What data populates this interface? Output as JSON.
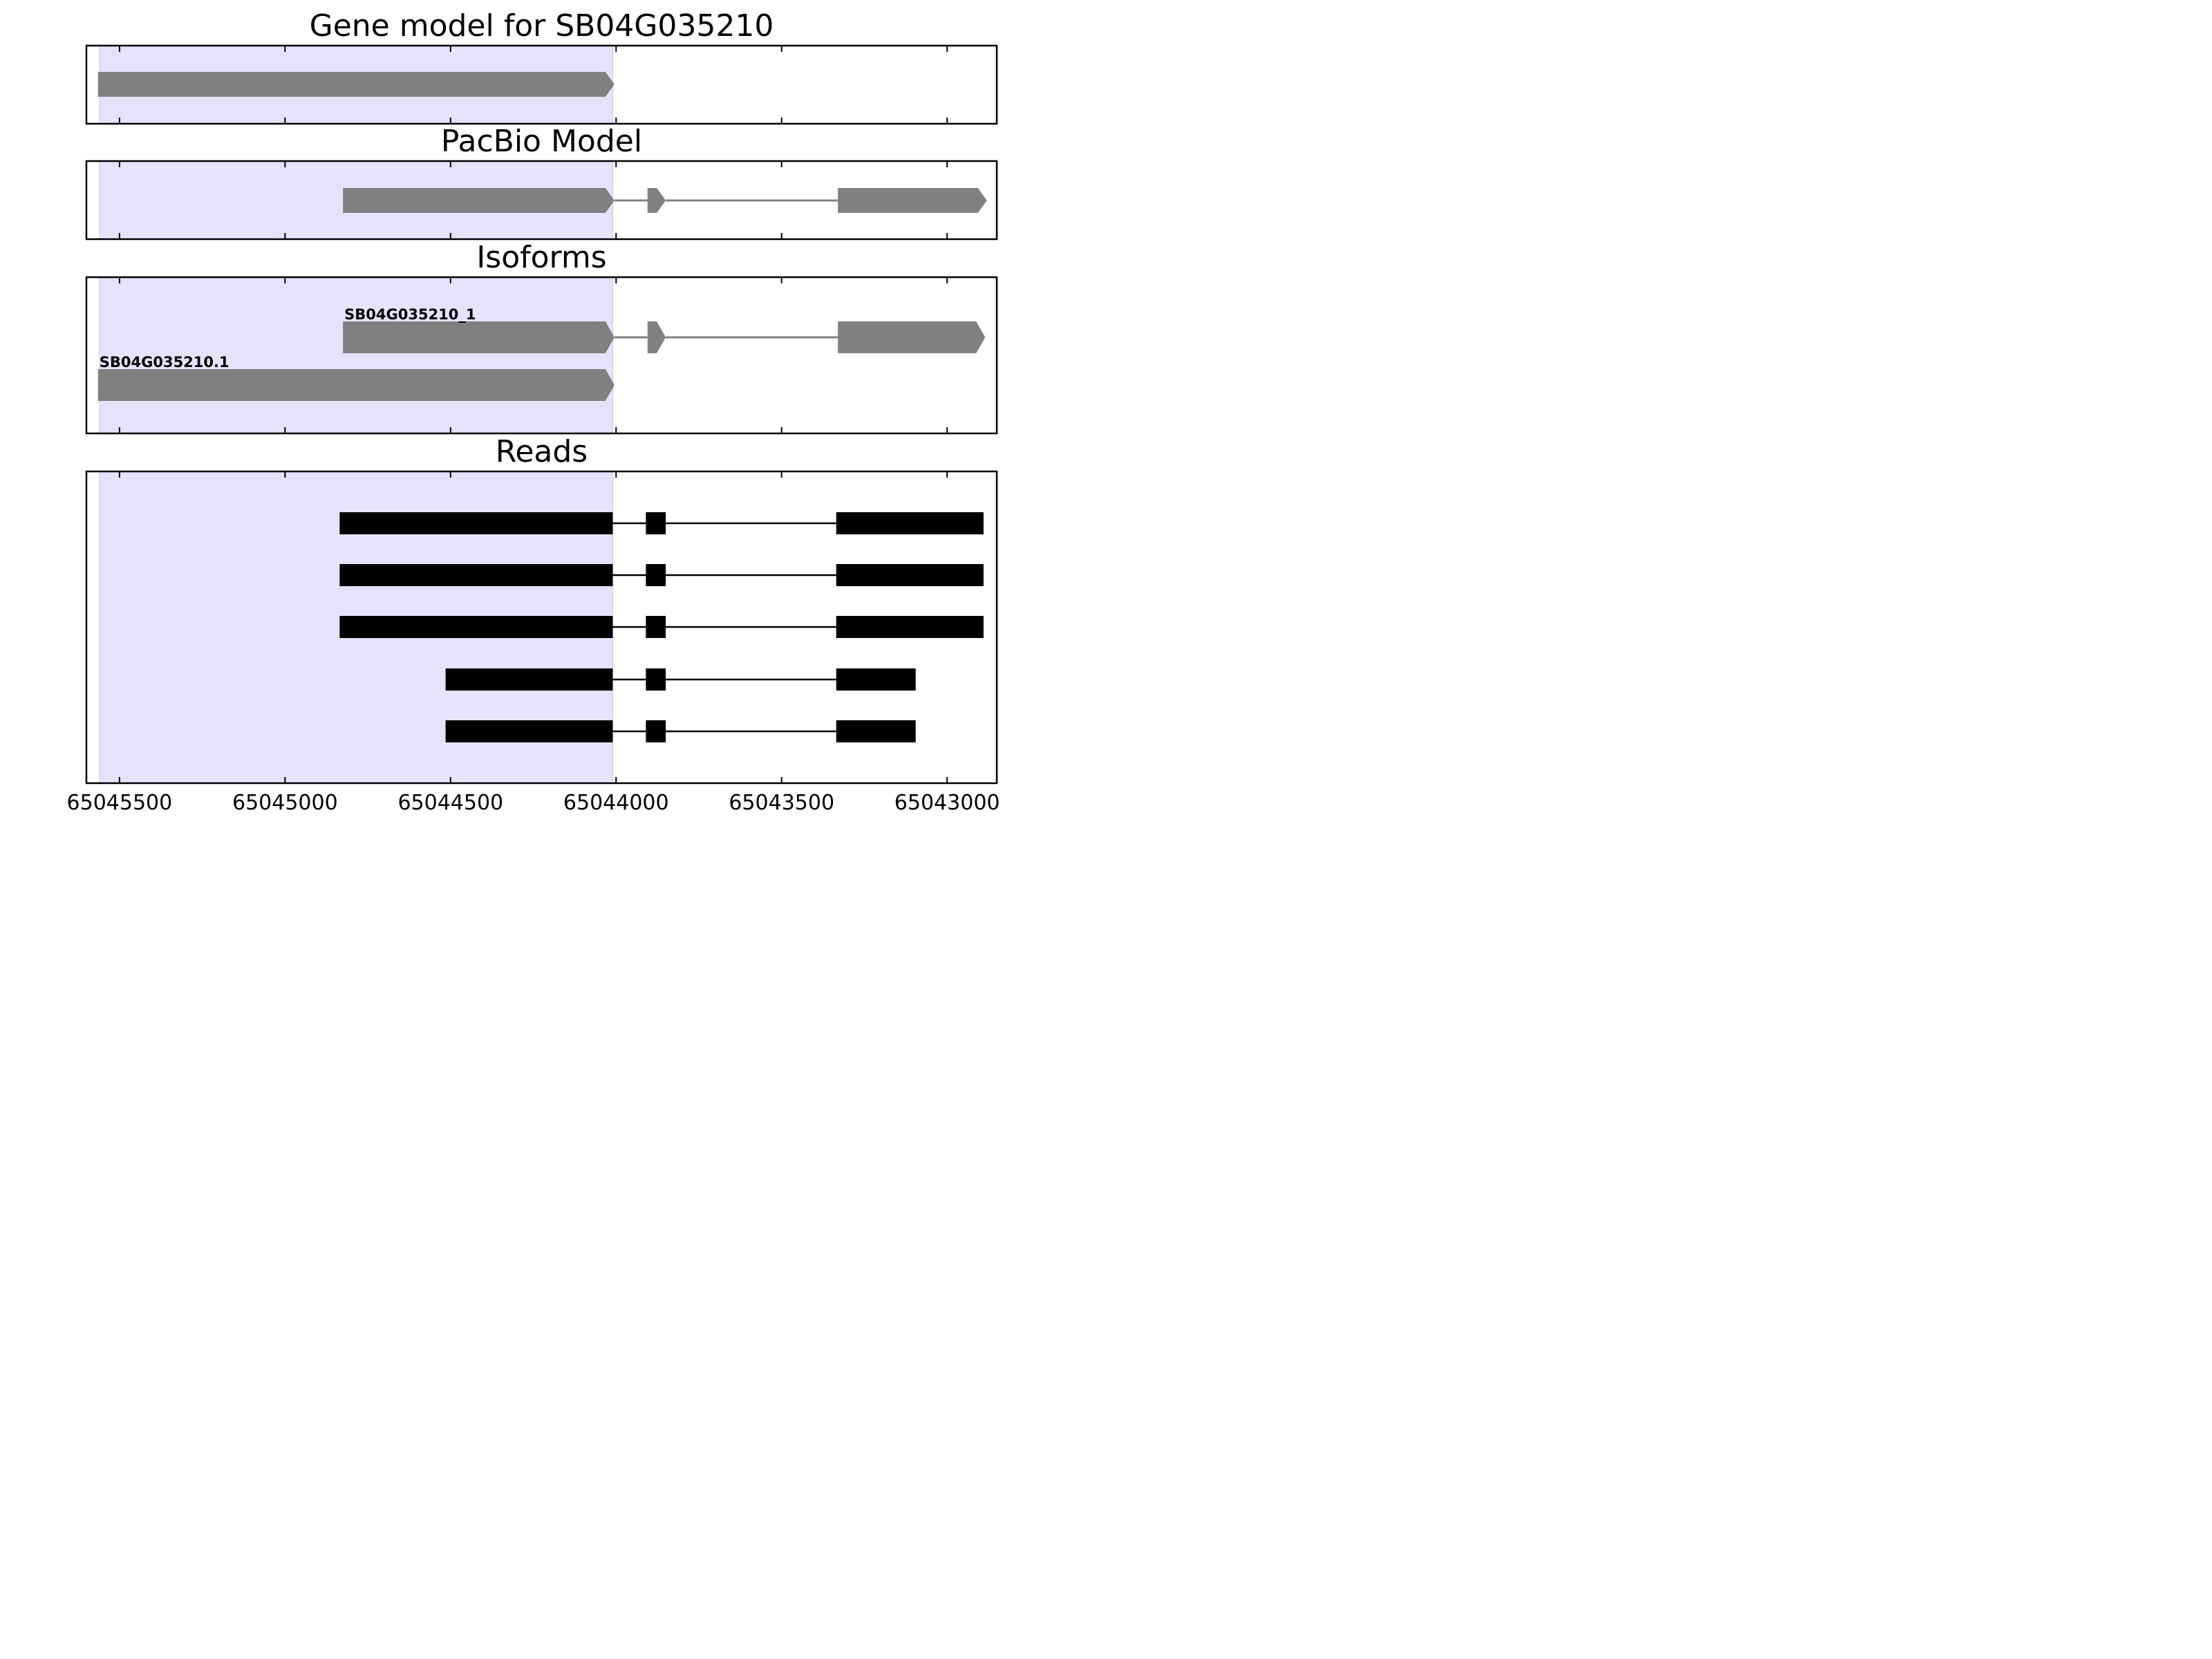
{
  "chart_data": {
    "type": "gene-track",
    "x_axis": {
      "ticks": [
        65045500,
        65045000,
        65044500,
        65044000,
        65043500,
        65043000
      ],
      "tick_labels": [
        "65045500",
        "65045000",
        "65044500",
        "65044000",
        "65043500",
        "65043000"
      ],
      "xlim": [
        65045600,
        65042850
      ],
      "reversed": true
    },
    "highlight_region": {
      "start": 65045560,
      "end": 65044010,
      "color": "#e3e3fc"
    },
    "colors": {
      "model": "#808080",
      "read": "#000000",
      "frame": "#000000"
    },
    "panels": [
      {
        "title": "Gene model for SB04G035210",
        "tracks": [
          {
            "label": "",
            "exons": [
              [
                65045565,
                65044005
              ]
            ]
          }
        ]
      },
      {
        "title": "PacBio Model",
        "tracks": [
          {
            "label": "",
            "exons": [
              [
                65044825,
                65044005
              ],
              [
                65043905,
                65043850
              ],
              [
                65043330,
                65042880
              ]
            ]
          }
        ]
      },
      {
        "title": "Isoforms",
        "tracks": [
          {
            "label": "SB04G035210_1",
            "exons": [
              [
                65044825,
                65044005
              ],
              [
                65043905,
                65043850
              ],
              [
                65043330,
                65042885
              ]
            ]
          },
          {
            "label": "SB04G035210.1",
            "exons": [
              [
                65045565,
                65044005
              ]
            ]
          }
        ]
      },
      {
        "title": "Reads",
        "tracks": [
          {
            "label": "",
            "exons": [
              [
                65044835,
                65044010
              ],
              [
                65043910,
                65043850
              ],
              [
                65043335,
                65042890
              ]
            ]
          },
          {
            "label": "",
            "exons": [
              [
                65044835,
                65044010
              ],
              [
                65043910,
                65043850
              ],
              [
                65043335,
                65042890
              ]
            ]
          },
          {
            "label": "",
            "exons": [
              [
                65044835,
                65044010
              ],
              [
                65043910,
                65043850
              ],
              [
                65043335,
                65042890
              ]
            ]
          },
          {
            "label": "",
            "exons": [
              [
                65044515,
                65044010
              ],
              [
                65043910,
                65043850
              ],
              [
                65043335,
                65043095
              ]
            ]
          },
          {
            "label": "",
            "exons": [
              [
                65044515,
                65044010
              ],
              [
                65043910,
                65043850
              ],
              [
                65043335,
                65043095
              ]
            ]
          }
        ]
      }
    ]
  }
}
